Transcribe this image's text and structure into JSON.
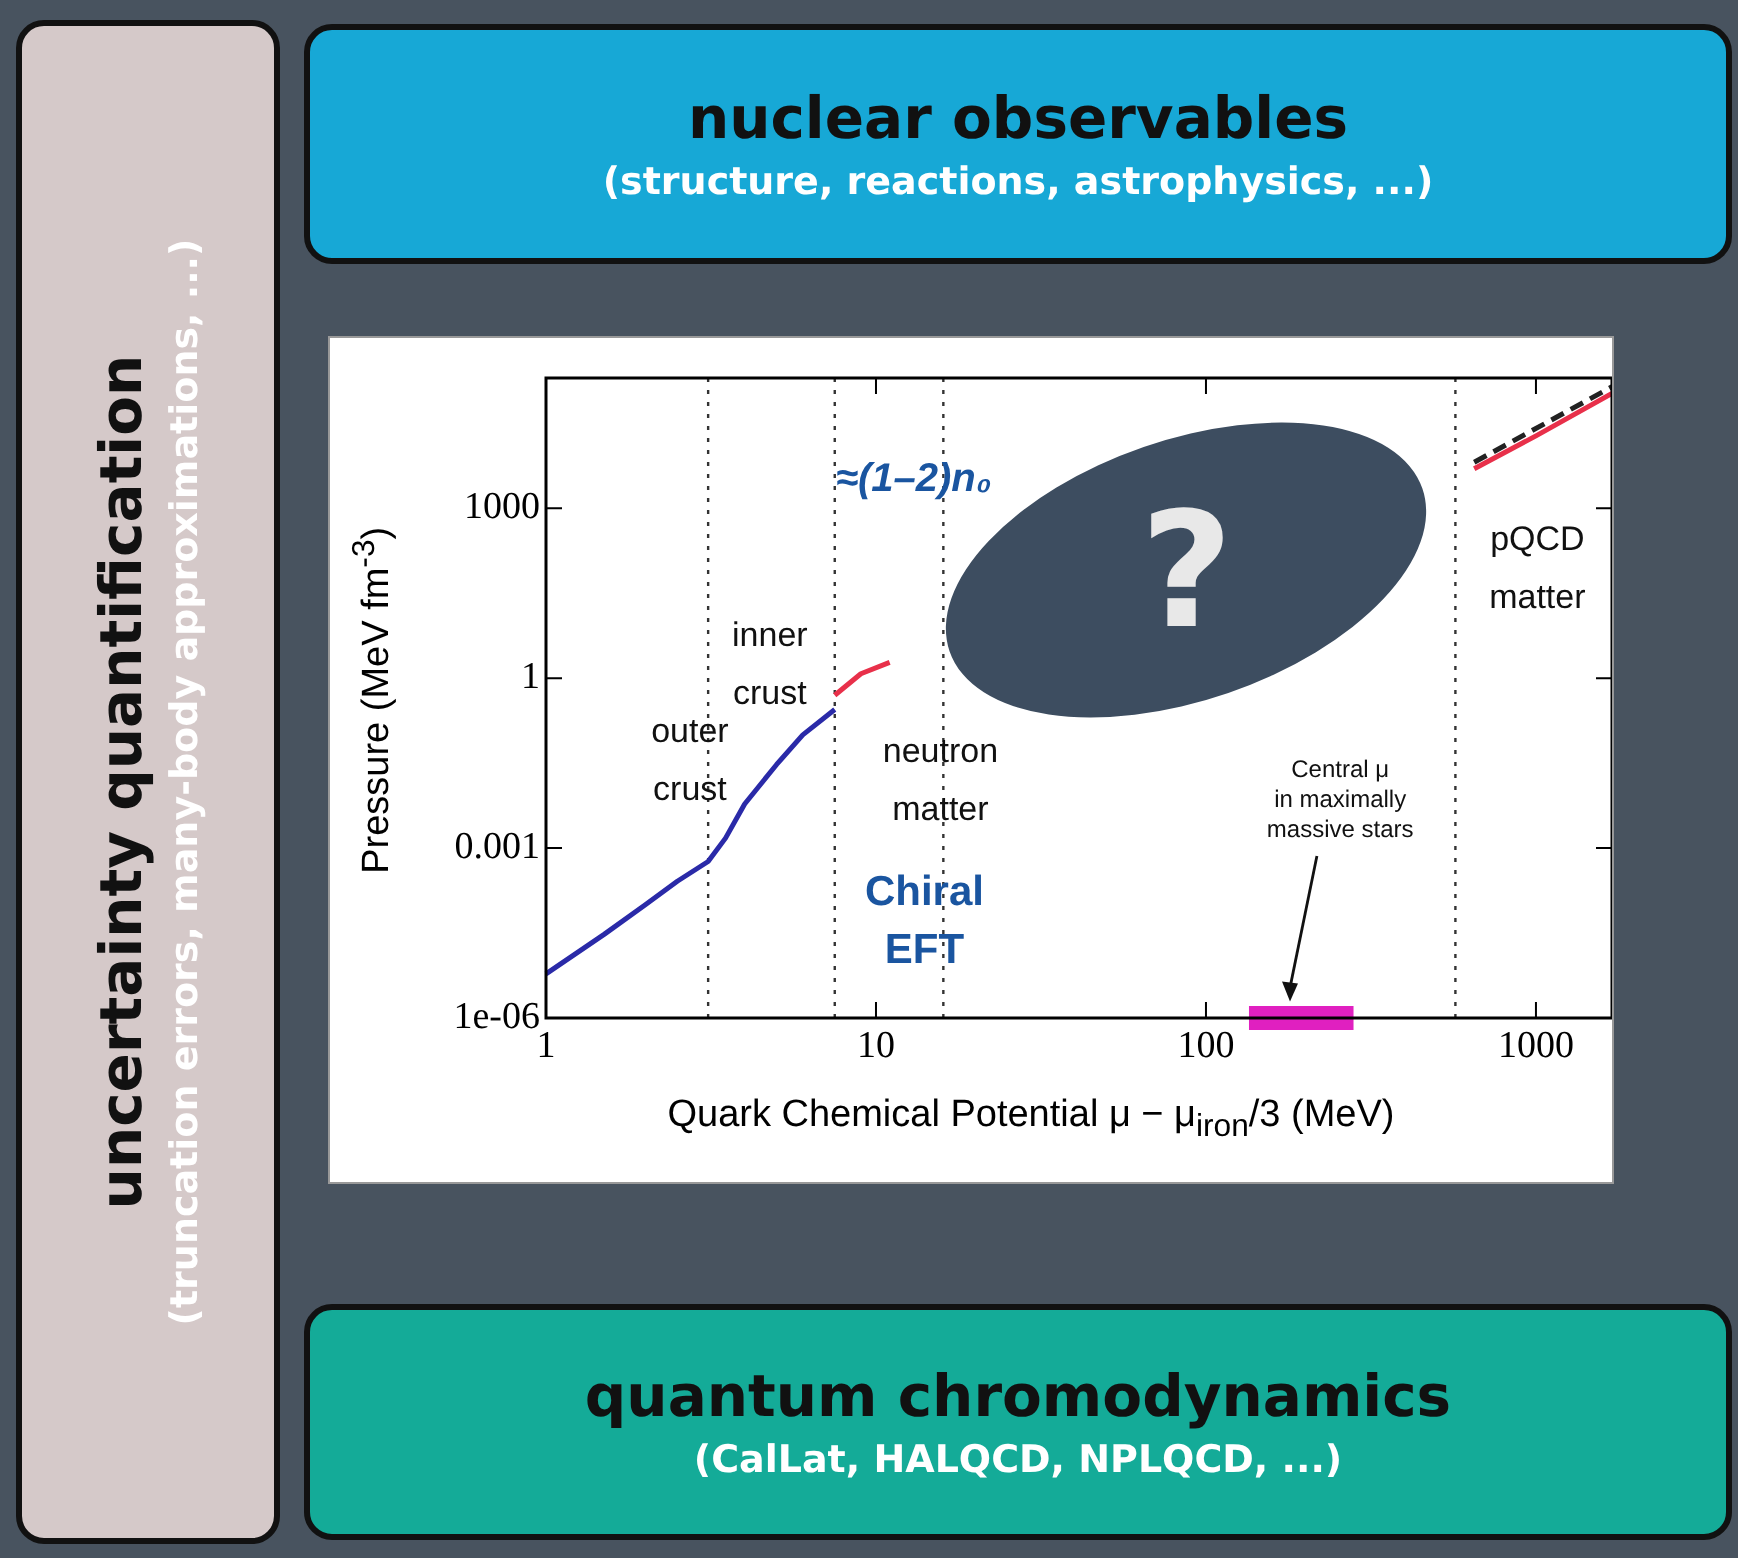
{
  "chart_data": {
    "type": "line",
    "xlabel": "Quark Chemical Potential μ − μ$_{iron}$/3 (MeV)",
    "ylabel": "Pressure (MeV fm$^{-3}$)",
    "log": "xy",
    "xlim": [
      1,
      1700
    ],
    "ylim": [
      1e-06,
      200000
    ],
    "xticks": [
      1,
      10,
      100,
      1000
    ],
    "yticks": [
      {
        "value": 1e-06,
        "label": "1e-06"
      },
      0.001,
      1,
      1000
    ],
    "grid": false,
    "legend": false,
    "marker": "none",
    "series": [
      {
        "color": "#2a2aa8",
        "x": [
          1,
          1.5,
          2,
          2.5,
          3.1,
          3.5,
          4,
          5,
          6,
          7.5
        ],
        "values": [
          6e-06,
          3e-05,
          0.0001,
          0.00026,
          0.00058,
          0.0015,
          0.006,
          0.03,
          0.1,
          0.28
        ]
      },
      {
        "color": "#e8304a",
        "x": [
          7.5,
          9,
          11,
          20,
          650,
          1000,
          1700
        ],
        "values": [
          0.5,
          1.2,
          1.9,
          null,
          5000,
          19000,
          107000
        ]
      },
      {
        "color": "#222222",
        "line_style": "dashed",
        "x": [
          650,
          1700
        ],
        "values": [
          6500,
          140000
        ]
      },
      {
        "color": "#e020c0",
        "x": [
          135,
          280
        ],
        "values": [
          1e-06,
          1e-06
        ]
      }
    ],
    "ref_lines": [
      {
        "axis": "x",
        "value": 3.1,
        "line_style": "dotted",
        "color": "#333333"
      },
      {
        "axis": "x",
        "value": 7.5,
        "line_style": "dotted",
        "color": "#333333"
      },
      {
        "axis": "x",
        "value": 16,
        "line_style": "dotted",
        "color": "#333333"
      },
      {
        "axis": "x",
        "value": 570,
        "line_style": "dotted",
        "color": "#333333"
      }
    ],
    "annotations": [
      "nuclear observables",
      "(structure, reactions, astrophysics, ...)",
      "quantum chromodynamics",
      "(CalLat, HALQCD, NPLQCD, ...)",
      "uncertainty quantification",
      "(truncation errors, many-body approximations, ...)",
      "?",
      "outer\ncrust",
      "inner\ncrust",
      "neutron\nmatter",
      "pQCD\nmatter",
      "Chiral\nEFT",
      "≈(1–2)n₀",
      "Central μ\nin maximally\nmassive stars"
    ]
  }
}
